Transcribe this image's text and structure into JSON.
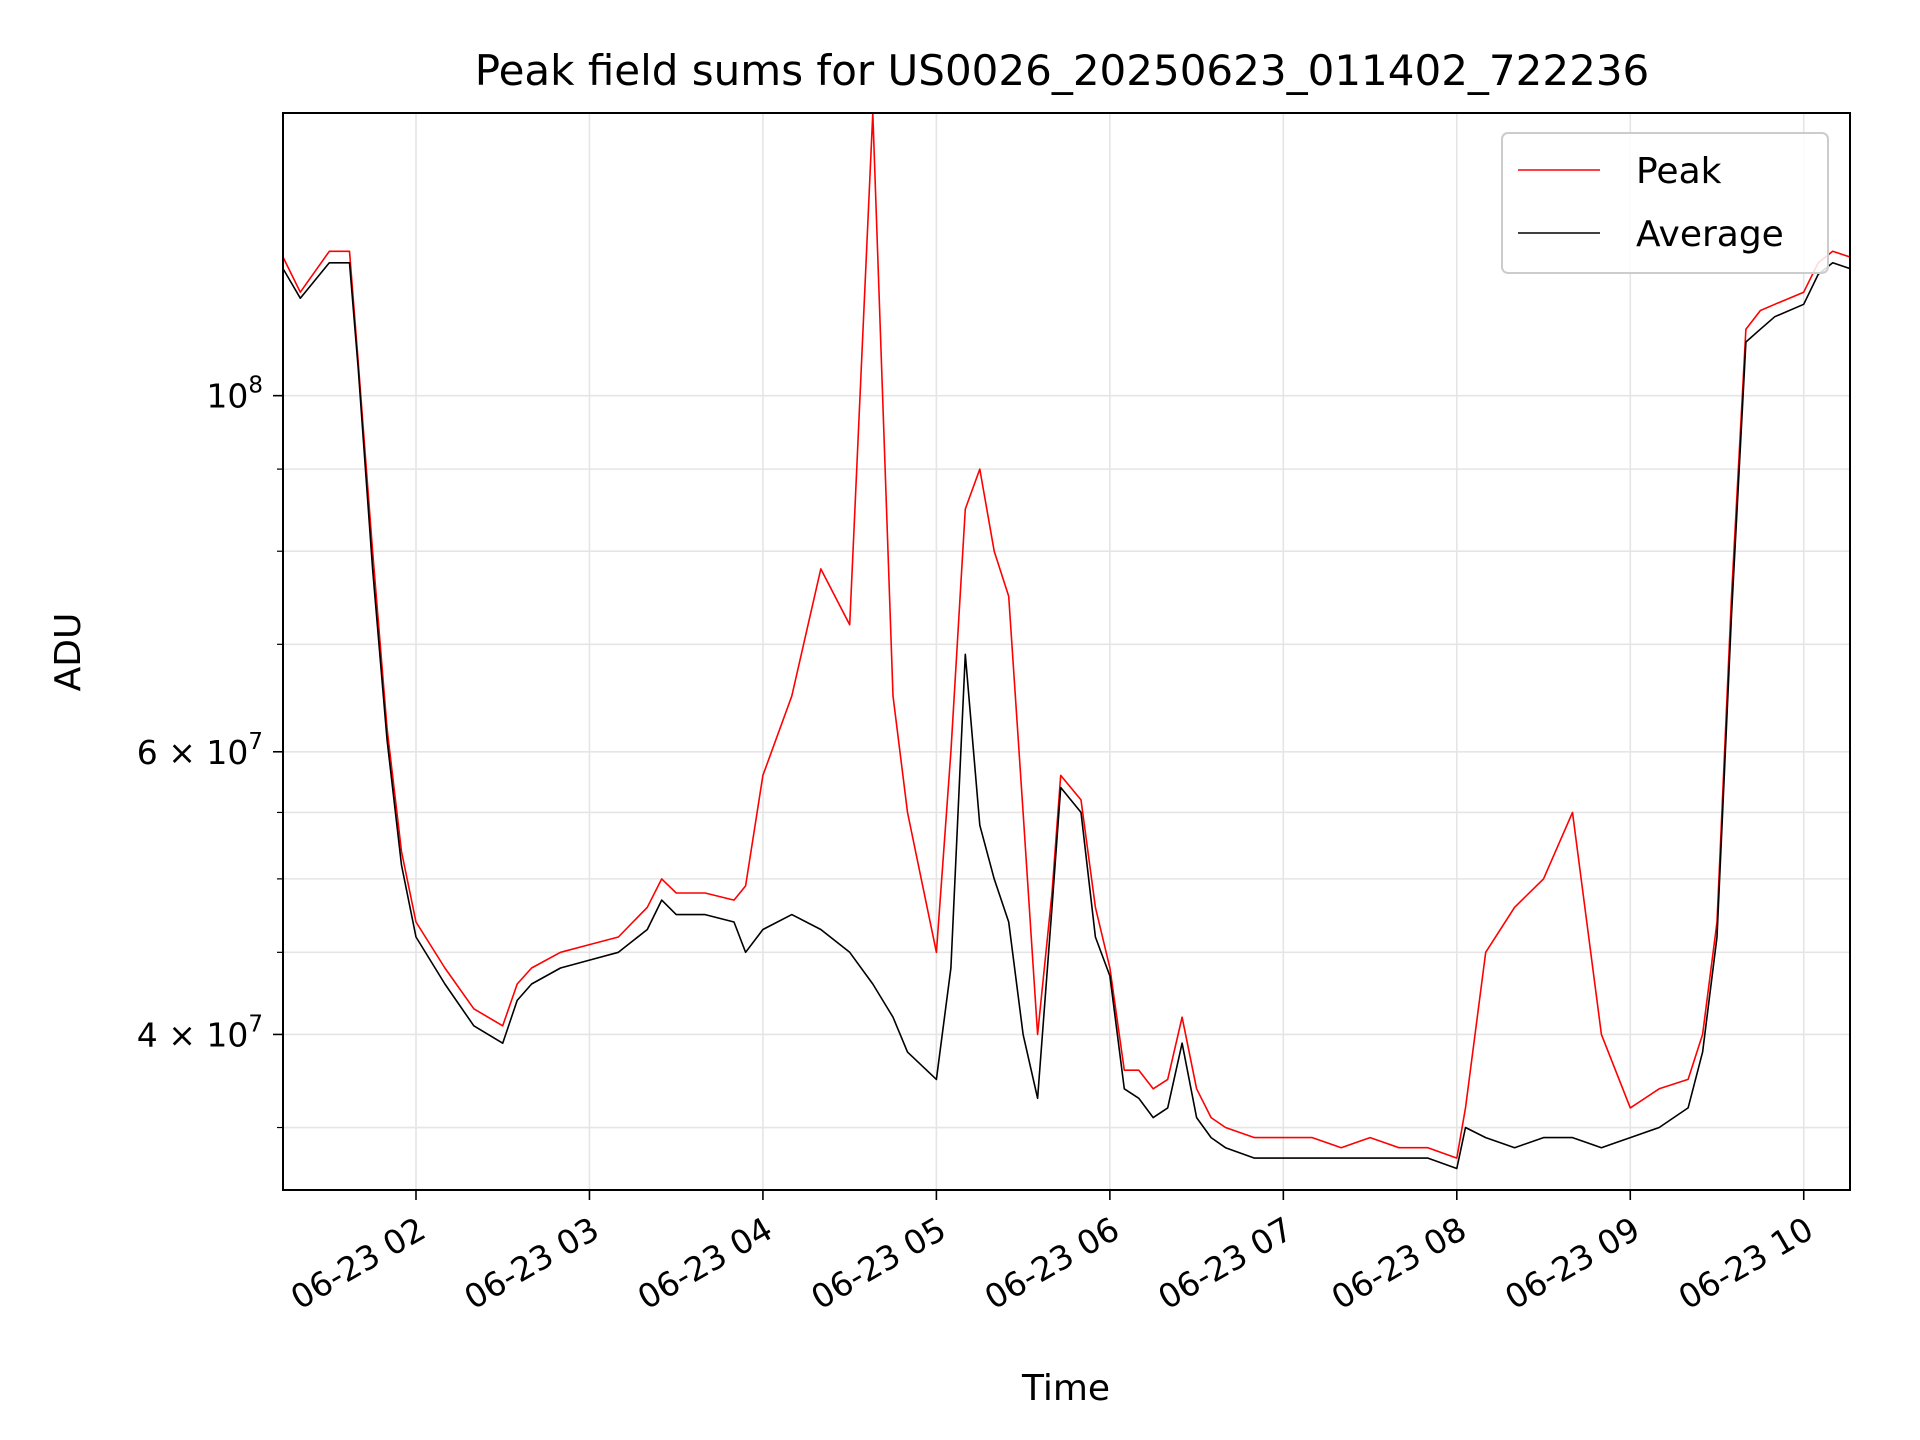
{
  "chart_data": {
    "type": "line",
    "title": "Peak field sums for US0026_20250623_011402_722236",
    "xlabel": "Time",
    "ylabel": "ADU",
    "xlim": [
      "06-23 01:14",
      "06-23 10:16"
    ],
    "ylim": [
      32000000,
      150000000
    ],
    "yscale": "log",
    "grid": true,
    "legend": {
      "placement": "top-right"
    },
    "x_ticks": [
      "06-23 02",
      "06-23 03",
      "06-23 04",
      "06-23 05",
      "06-23 06",
      "06-23 07",
      "06-23 08",
      "06-23 09",
      "06-23 10"
    ],
    "y_ticks": [
      {
        "base": "10",
        "exp": "8",
        "prefix": ""
      },
      {
        "base": "10",
        "exp": "7",
        "prefix": "6 × "
      },
      {
        "base": "10",
        "exp": "7",
        "prefix": "4 × "
      }
    ],
    "colors": {
      "Peak": "#ff0000",
      "Average": "#000000"
    },
    "series": [
      {
        "name": "Peak",
        "x": [
          "06-23 01:14",
          "06-23 01:20",
          "06-23 01:30",
          "06-23 01:37",
          "06-23 01:40",
          "06-23 01:45",
          "06-23 01:50",
          "06-23 01:55",
          "06-23 02:00",
          "06-23 02:10",
          "06-23 02:20",
          "06-23 02:30",
          "06-23 02:35",
          "06-23 02:40",
          "06-23 02:50",
          "06-23 03:00",
          "06-23 03:10",
          "06-23 03:20",
          "06-23 03:25",
          "06-23 03:30",
          "06-23 03:40",
          "06-23 03:50",
          "06-23 03:54",
          "06-23 04:00",
          "06-23 04:10",
          "06-23 04:20",
          "06-23 04:30",
          "06-23 04:38",
          "06-23 04:45",
          "06-23 04:50",
          "06-23 05:00",
          "06-23 05:05",
          "06-23 05:10",
          "06-23 05:15",
          "06-23 05:20",
          "06-23 05:25",
          "06-23 05:30",
          "06-23 05:35",
          "06-23 05:40",
          "06-23 05:43",
          "06-23 05:50",
          "06-23 05:55",
          "06-23 06:00",
          "06-23 06:05",
          "06-23 06:10",
          "06-23 06:15",
          "06-23 06:20",
          "06-23 06:25",
          "06-23 06:30",
          "06-23 06:35",
          "06-23 06:40",
          "06-23 06:50",
          "06-23 07:00",
          "06-23 07:10",
          "06-23 07:20",
          "06-23 07:30",
          "06-23 07:40",
          "06-23 07:50",
          "06-23 08:00",
          "06-23 08:03",
          "06-23 08:10",
          "06-23 08:20",
          "06-23 08:30",
          "06-23 08:40",
          "06-23 08:50",
          "06-23 09:00",
          "06-23 09:10",
          "06-23 09:20",
          "06-23 09:25",
          "06-23 09:30",
          "06-23 09:35",
          "06-23 09:40",
          "06-23 09:45",
          "06-23 09:50",
          "06-23 10:00",
          "06-23 10:05",
          "06-23 10:10",
          "06-23 10:16"
        ],
        "y": [
          122000000,
          116000000,
          123000000,
          123000000,
          105000000,
          80000000,
          62000000,
          52000000,
          47000000,
          44000000,
          41500000,
          40500000,
          43000000,
          44000000,
          45000000,
          45500000,
          46000000,
          48000000,
          50000000,
          49000000,
          49000000,
          48500000,
          49500000,
          58000000,
          65000000,
          78000000,
          72000000,
          150000000,
          65000000,
          55000000,
          45000000,
          60000000,
          85000000,
          90000000,
          80000000,
          75000000,
          55000000,
          40000000,
          49000000,
          58000000,
          56000000,
          48000000,
          44000000,
          38000000,
          38000000,
          37000000,
          37500000,
          41000000,
          37000000,
          35500000,
          35000000,
          34500000,
          34500000,
          34500000,
          34000000,
          34500000,
          34000000,
          34000000,
          33500000,
          36000000,
          45000000,
          48000000,
          50000000,
          55000000,
          40000000,
          36000000,
          37000000,
          37500000,
          40000000,
          47000000,
          75000000,
          110000000,
          113000000,
          114000000,
          116000000,
          121000000,
          123000000,
          122000000
        ]
      },
      {
        "name": "Average",
        "x": [
          "06-23 01:14",
          "06-23 01:20",
          "06-23 01:30",
          "06-23 01:37",
          "06-23 01:40",
          "06-23 01:45",
          "06-23 01:50",
          "06-23 01:55",
          "06-23 02:00",
          "06-23 02:10",
          "06-23 02:20",
          "06-23 02:30",
          "06-23 02:35",
          "06-23 02:40",
          "06-23 02:50",
          "06-23 03:00",
          "06-23 03:10",
          "06-23 03:20",
          "06-23 03:25",
          "06-23 03:30",
          "06-23 03:40",
          "06-23 03:50",
          "06-23 03:54",
          "06-23 04:00",
          "06-23 04:10",
          "06-23 04:20",
          "06-23 04:30",
          "06-23 04:38",
          "06-23 04:45",
          "06-23 04:50",
          "06-23 05:00",
          "06-23 05:05",
          "06-23 05:10",
          "06-23 05:15",
          "06-23 05:20",
          "06-23 05:25",
          "06-23 05:30",
          "06-23 05:35",
          "06-23 05:40",
          "06-23 05:43",
          "06-23 05:50",
          "06-23 05:55",
          "06-23 06:00",
          "06-23 06:05",
          "06-23 06:10",
          "06-23 06:15",
          "06-23 06:20",
          "06-23 06:25",
          "06-23 06:30",
          "06-23 06:35",
          "06-23 06:40",
          "06-23 06:50",
          "06-23 07:00",
          "06-23 07:10",
          "06-23 07:20",
          "06-23 07:30",
          "06-23 07:40",
          "06-23 07:50",
          "06-23 08:00",
          "06-23 08:03",
          "06-23 08:10",
          "06-23 08:20",
          "06-23 08:30",
          "06-23 08:40",
          "06-23 08:50",
          "06-23 09:00",
          "06-23 09:10",
          "06-23 09:20",
          "06-23 09:25",
          "06-23 09:30",
          "06-23 09:35",
          "06-23 09:40",
          "06-23 09:45",
          "06-23 09:50",
          "06-23 10:00",
          "06-23 10:05",
          "06-23 10:10",
          "06-23 10:16"
        ],
        "y": [
          120000000,
          115000000,
          121000000,
          121000000,
          104000000,
          78000000,
          61000000,
          51000000,
          46000000,
          43000000,
          40500000,
          39500000,
          42000000,
          43000000,
          44000000,
          44500000,
          45000000,
          46500000,
          48500000,
          47500000,
          47500000,
          47000000,
          45000000,
          46500000,
          47500000,
          46500000,
          45000000,
          43000000,
          41000000,
          39000000,
          37500000,
          44000000,
          69000000,
          54000000,
          50000000,
          47000000,
          40000000,
          36500000,
          48000000,
          57000000,
          55000000,
          46000000,
          43500000,
          37000000,
          36500000,
          35500000,
          36000000,
          39500000,
          35500000,
          34500000,
          34000000,
          33500000,
          33500000,
          33500000,
          33500000,
          33500000,
          33500000,
          33500000,
          33000000,
          35000000,
          34500000,
          34000000,
          34500000,
          34500000,
          34000000,
          34500000,
          35000000,
          36000000,
          39000000,
          46000000,
          73000000,
          108000000,
          110000000,
          112000000,
          114000000,
          119000000,
          121000000,
          120000000
        ]
      }
    ]
  }
}
